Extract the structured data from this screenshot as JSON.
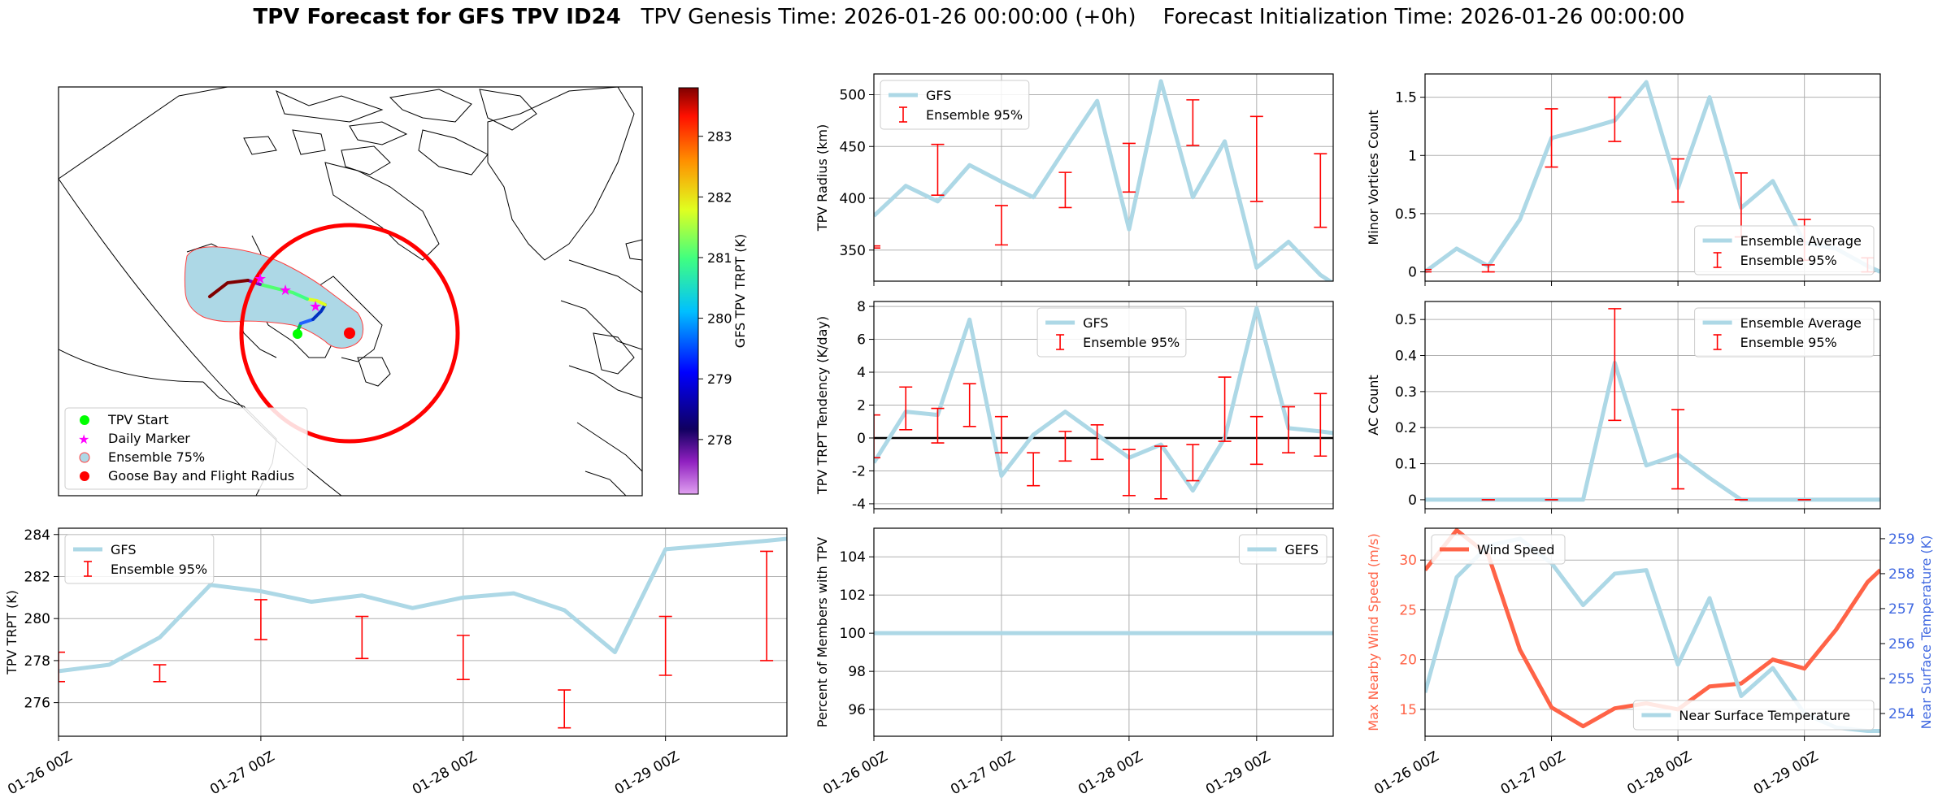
{
  "header": {
    "title_bold": "TPV Forecast for GFS TPV ID24",
    "genesis": "TPV Genesis Time: 2026-01-26 00:00:00 (+0h)",
    "init": "Forecast Initialization Time: 2026-01-26 00:00:00"
  },
  "colors": {
    "gfs_line": "#add8e6",
    "errorbar": "#ff0000",
    "wind": "#ff6347",
    "temp_axis": "#4169e1",
    "wind_axis": "#ff6347"
  },
  "map": {
    "legend": [
      "TPV Start",
      "Daily Marker",
      "Ensemble 75%",
      "Goose Bay and Flight Radius"
    ],
    "colorbar": {
      "label": "GFS TPV TRPT (K)",
      "ticks": [
        278,
        279,
        280,
        281,
        282,
        283
      ],
      "range": [
        277.1,
        283.8
      ]
    }
  },
  "chart_data": [
    {
      "id": "radius",
      "type": "line",
      "ylabel": "TPV Radius (km)",
      "ylim": [
        320,
        520
      ],
      "yticks": [
        350,
        400,
        450,
        500
      ],
      "xlim": [
        0,
        3.6
      ],
      "legend": {
        "items": [
          "GFS",
          "Ensemble 95%"
        ],
        "loc": "upper left"
      },
      "series": [
        {
          "name": "GFS",
          "x": [
            0,
            0.25,
            0.5,
            0.75,
            1.0,
            1.25,
            1.5,
            1.75,
            2.0,
            2.25,
            2.5,
            2.75,
            3.0,
            3.25,
            3.5,
            3.6
          ],
          "y": [
            383,
            412,
            397,
            432,
            416,
            401,
            448,
            494,
            370,
            513,
            401,
            455,
            333,
            358,
            326,
            318
          ]
        }
      ],
      "errorbars": {
        "x": [
          0,
          0.5,
          1.0,
          1.5,
          2.0,
          2.5,
          3.0,
          3.5
        ],
        "low": [
          352,
          403,
          355,
          391,
          406,
          451,
          397,
          372
        ],
        "high": [
          354,
          452,
          393,
          425,
          453,
          495,
          479,
          443
        ]
      }
    },
    {
      "id": "minor",
      "type": "line",
      "ylabel": "Minor Vortices Count",
      "ylim": [
        -0.08,
        1.7
      ],
      "yticks": [
        0.0,
        0.5,
        1.0,
        1.5
      ],
      "xlim": [
        0,
        3.6
      ],
      "legend": {
        "items": [
          "Ensemble Average",
          "Ensemble 95%"
        ],
        "loc": "lower right"
      },
      "series": [
        {
          "name": "Ensemble Average",
          "x": [
            0,
            0.25,
            0.5,
            0.75,
            1.0,
            1.25,
            1.5,
            1.75,
            2.0,
            2.25,
            2.5,
            2.75,
            3.0,
            3.25,
            3.5,
            3.6
          ],
          "y": [
            0.0,
            0.2,
            0.05,
            0.45,
            1.15,
            1.22,
            1.3,
            1.63,
            0.72,
            1.5,
            0.55,
            0.78,
            0.25,
            0.2,
            0.05,
            0.0
          ]
        }
      ],
      "errorbars": {
        "x": [
          0,
          0.5,
          1.0,
          1.5,
          2.0,
          2.5,
          3.0,
          3.5
        ],
        "low": [
          0.0,
          0.0,
          0.9,
          1.12,
          0.6,
          0.3,
          0.1,
          0.0
        ],
        "high": [
          0.02,
          0.06,
          1.4,
          1.5,
          0.97,
          0.85,
          0.45,
          0.12
        ]
      }
    },
    {
      "id": "tendency",
      "type": "line",
      "ylabel": "TPV TRPT Tendency (K/day)",
      "ylim": [
        -4.3,
        8.3
      ],
      "yticks": [
        -4,
        -2,
        0,
        2,
        4,
        6,
        8
      ],
      "xlim": [
        0,
        3.6
      ],
      "legend": {
        "items": [
          "GFS",
          "Ensemble 95%"
        ],
        "loc": "upper center"
      },
      "zero_line": 0,
      "series": [
        {
          "name": "GFS",
          "x": [
            0,
            0.25,
            0.5,
            0.75,
            1.0,
            1.25,
            1.5,
            1.75,
            2.0,
            2.25,
            2.5,
            2.75,
            3.0,
            3.25,
            3.5,
            3.6
          ],
          "y": [
            -1.5,
            1.6,
            1.4,
            7.2,
            -2.3,
            0.2,
            1.6,
            0.2,
            -1.2,
            -0.4,
            -3.2,
            0.0,
            7.9,
            0.6,
            0.4,
            0.3
          ]
        }
      ],
      "errorbars": {
        "x": [
          0,
          0.25,
          0.5,
          0.75,
          1.0,
          1.25,
          1.5,
          1.75,
          2.0,
          2.25,
          2.5,
          2.75,
          3.0,
          3.25,
          3.5
        ],
        "low": [
          -1.2,
          0.5,
          -0.3,
          0.7,
          -0.9,
          -2.9,
          -1.4,
          -1.3,
          -3.5,
          -3.7,
          -2.6,
          -0.2,
          -1.6,
          -0.9,
          -1.1
        ],
        "high": [
          1.4,
          3.1,
          1.8,
          3.3,
          1.3,
          -0.9,
          0.4,
          0.8,
          -0.7,
          -0.5,
          -0.4,
          3.7,
          1.3,
          1.9,
          2.7
        ]
      }
    },
    {
      "id": "ac",
      "type": "line",
      "ylabel": "AC Count",
      "ylim": [
        -0.025,
        0.55
      ],
      "yticks": [
        0.0,
        0.1,
        0.2,
        0.3,
        0.4,
        0.5
      ],
      "xlim": [
        0,
        3.6
      ],
      "legend": {
        "items": [
          "Ensemble Average",
          "Ensemble 95%"
        ],
        "loc": "upper right"
      },
      "series": [
        {
          "name": "Ensemble Average",
          "x": [
            0,
            0.25,
            0.5,
            0.75,
            1.0,
            1.25,
            1.5,
            1.75,
            2.0,
            2.25,
            2.5,
            2.75,
            3.0,
            3.25,
            3.5,
            3.6
          ],
          "y": [
            0,
            0,
            0,
            0,
            0,
            0,
            0.38,
            0.095,
            0.125,
            0.06,
            0,
            0,
            0,
            0,
            0,
            0
          ]
        }
      ],
      "errorbars": {
        "x": [
          0.5,
          1.0,
          1.5,
          2.0,
          2.5,
          3.0
        ],
        "low": [
          0,
          0,
          0.22,
          0.03,
          0,
          0
        ],
        "high": [
          0,
          0,
          0.53,
          0.25,
          0,
          0
        ]
      }
    },
    {
      "id": "trpt",
      "type": "line",
      "ylabel": "TPV TRPT (K)",
      "ylim": [
        274.4,
        284.3
      ],
      "yticks": [
        276,
        278,
        280,
        282,
        284
      ],
      "xlim": [
        0,
        3.6
      ],
      "xticks": [
        0,
        1,
        2,
        3
      ],
      "xticklabels": [
        "01-26 00Z",
        "01-27 00Z",
        "01-28 00Z",
        "01-29 00Z"
      ],
      "legend": {
        "items": [
          "GFS",
          "Ensemble 95%"
        ],
        "loc": "upper left"
      },
      "series": [
        {
          "name": "GFS",
          "x": [
            0,
            0.25,
            0.5,
            0.75,
            1.0,
            1.25,
            1.5,
            1.75,
            2.0,
            2.25,
            2.5,
            2.75,
            3.0,
            3.25,
            3.5,
            3.6
          ],
          "y": [
            277.5,
            277.8,
            279.1,
            281.6,
            281.3,
            280.8,
            281.1,
            280.5,
            281.0,
            281.2,
            280.4,
            278.4,
            283.3,
            283.5,
            283.7,
            283.8
          ]
        }
      ],
      "errorbars": {
        "x": [
          0,
          0.5,
          1.0,
          1.5,
          2.0,
          2.5,
          3.0,
          3.5
        ],
        "low": [
          277.0,
          277.0,
          279.0,
          278.1,
          277.1,
          274.8,
          277.3,
          278.0
        ],
        "high": [
          278.4,
          277.8,
          280.9,
          280.1,
          279.2,
          276.6,
          280.1,
          283.2
        ]
      }
    },
    {
      "id": "percent",
      "type": "line",
      "ylabel": "Percent of Members with TPV",
      "ylim": [
        94.6,
        105.5
      ],
      "yticks": [
        96,
        98,
        100,
        102,
        104
      ],
      "xlim": [
        0,
        3.6
      ],
      "xticks": [
        0,
        1,
        2,
        3
      ],
      "xticklabels": [
        "01-26 00Z",
        "01-27 00Z",
        "01-28 00Z",
        "01-29 00Z"
      ],
      "legend": {
        "items": [
          "GEFS"
        ],
        "loc": "upper right"
      },
      "series": [
        {
          "name": "GEFS",
          "x": [
            0,
            3.6
          ],
          "y": [
            100,
            100
          ]
        }
      ]
    },
    {
      "id": "wind_temp",
      "type": "line",
      "ylabel": "Max Nearby Wind Speed (m/s)",
      "ylabel2": "Near Surface Temperature (K)",
      "ylim": [
        12.3,
        33.2
      ],
      "yticks": [
        15,
        20,
        25,
        30
      ],
      "ylim2": [
        253.35,
        259.3
      ],
      "yticks2": [
        254,
        255,
        256,
        257,
        258,
        259
      ],
      "xlim": [
        0,
        3.6
      ],
      "xticks": [
        0,
        1,
        2,
        3
      ],
      "xticklabels": [
        "01-26 00Z",
        "01-27 00Z",
        "01-28 00Z",
        "01-29 00Z"
      ],
      "legend_wind": {
        "items": [
          "Wind Speed"
        ],
        "loc": "upper left"
      },
      "legend_temp": {
        "items": [
          "Near Surface Temperature"
        ],
        "loc": "lower right"
      },
      "series": [
        {
          "name": "Wind Speed",
          "axis": "left",
          "x": [
            0,
            0.25,
            0.5,
            0.75,
            1.0,
            1.25,
            1.5,
            1.75,
            2.0,
            2.25,
            2.5,
            2.75,
            3.0,
            3.25,
            3.5,
            3.6
          ],
          "y": [
            29,
            33,
            30.5,
            21,
            15.2,
            13.3,
            15.1,
            15.6,
            15.0,
            17.3,
            17.6,
            20.0,
            19.1,
            23.0,
            27.8,
            29
          ]
        },
        {
          "name": "Near Surface Temperature",
          "axis": "right",
          "x": [
            0,
            0.25,
            0.5,
            0.75,
            1.0,
            1.25,
            1.5,
            1.75,
            2.0,
            2.25,
            2.5,
            2.75,
            3.0,
            3.25,
            3.5,
            3.6
          ],
          "y": [
            254.6,
            257.9,
            258.8,
            259.0,
            258.3,
            257.1,
            258.0,
            258.1,
            255.4,
            257.3,
            254.5,
            255.3,
            254.0,
            253.6,
            253.5,
            253.5
          ]
        }
      ]
    }
  ]
}
